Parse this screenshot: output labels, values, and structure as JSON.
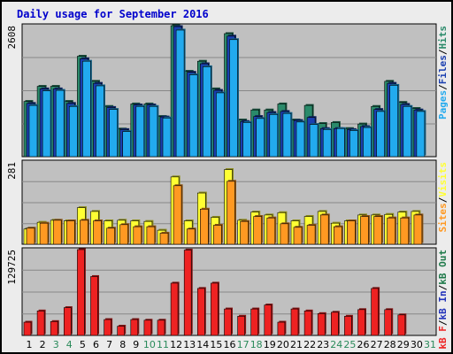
{
  "chart_data": {
    "type": "bar",
    "title": "Daily usage for September 2016",
    "days": [
      "1",
      "2",
      "3",
      "4",
      "5",
      "6",
      "7",
      "8",
      "9",
      "10",
      "11",
      "12",
      "13",
      "14",
      "15",
      "16",
      "17",
      "18",
      "19",
      "20",
      "21",
      "22",
      "23",
      "24",
      "25",
      "26",
      "27",
      "28",
      "29",
      "30",
      "31"
    ],
    "weekend_days": [
      3,
      4,
      10,
      11,
      17,
      18,
      24,
      25,
      31
    ],
    "colors": {
      "hits": "#2a8a6a",
      "files": "#1a3fb0",
      "pages": "#22aaee",
      "visits": "#ffff33",
      "sites": "#ff9922",
      "kb_in": "#2233bb",
      "kb_out": "#1e7a4a",
      "kb_f": "#ee2222",
      "weekday_label": "#000000",
      "weekend_label": "#2a8a5a",
      "title": "#0000cc"
    },
    "panels": [
      {
        "name": "requests",
        "max_label": "2608",
        "ymax": 2608,
        "legend": [
          {
            "text": "Pages",
            "color": "#22aaee"
          },
          {
            "text": "/",
            "color": "#000000"
          },
          {
            "text": "Files",
            "color": "#1a3fb0"
          },
          {
            "text": "/",
            "color": "#000000"
          },
          {
            "text": "Hits",
            "color": "#2a8a6a"
          }
        ],
        "series": [
          {
            "name": "Hits",
            "values": [
              1100,
              1400,
              1400,
              1100,
              2000,
              1500,
              1000,
              550,
              1050,
              1050,
              800,
              2608,
              1700,
              1900,
              1350,
              2450,
              730,
              930,
              930,
              1050,
              730,
              1020,
              660,
              680,
              560,
              650,
              1000,
              1500,
              1080,
              960,
              0
            ]
          },
          {
            "name": "Files",
            "values": [
              1060,
              1350,
              1350,
              1060,
              1950,
              1460,
              980,
              540,
              1030,
              1030,
              790,
              2590,
              1680,
              1850,
              1320,
              2400,
              700,
              800,
              880,
              900,
              720,
              780,
              560,
              560,
              540,
              600,
              940,
              1460,
              1040,
              930,
              0
            ]
          },
          {
            "name": "Pages",
            "values": [
              1020,
              1310,
              1320,
              1000,
              1900,
              1410,
              940,
              500,
              1000,
              1000,
              770,
              2520,
              1630,
              1790,
              1270,
              2330,
              680,
              760,
              840,
              860,
              690,
              640,
              540,
              560,
              520,
              580,
              900,
              1420,
              1000,
              900,
              0
            ]
          }
        ]
      },
      {
        "name": "visitors",
        "max_label": "281",
        "ymax": 281,
        "legend": [
          {
            "text": "Sites",
            "color": "#ff9922"
          },
          {
            "text": "/",
            "color": "#000000"
          },
          {
            "text": "Visits",
            "color": "#ffff33"
          }
        ],
        "series": [
          {
            "name": "Visits",
            "values": [
              52,
              75,
              82,
              80,
              125,
              112,
              80,
              82,
              80,
              78,
              48,
              230,
              80,
              175,
              92,
              255,
              82,
              110,
              100,
              108,
              80,
              95,
              112,
              72,
              80,
              100,
              100,
              102,
              110,
              112,
              0
            ]
          },
          {
            "name": "Sites",
            "values": [
              55,
              72,
              82,
              80,
              82,
              80,
              55,
              67,
              60,
              60,
              38,
              200,
              52,
              120,
              65,
              215,
              78,
              95,
              90,
              70,
              58,
              65,
              100,
              60,
              80,
              95,
              95,
              90,
              90,
              100,
              0
            ]
          }
        ]
      },
      {
        "name": "kbytes",
        "max_label": "129725",
        "ymax": 129725,
        "legend": [
          {
            "text": "kB F",
            "color": "#ee2222"
          },
          {
            "text": "/",
            "color": "#000000"
          },
          {
            "text": "kB In",
            "color": "#2233bb"
          },
          {
            "text": "/",
            "color": "#000000"
          },
          {
            "text": "kB Out",
            "color": "#1e7a4a"
          }
        ],
        "series": [
          {
            "name": "kB F",
            "values": [
              20000,
              37000,
              21000,
              42000,
              129725,
              89000,
              24000,
              14000,
              24000,
              23000,
              23000,
              79000,
              129000,
              71000,
              79000,
              40000,
              29000,
              40000,
              46000,
              20000,
              40000,
              37000,
              33000,
              35000,
              29000,
              39000,
              71000,
              39000,
              31000,
              0,
              0
            ]
          }
        ]
      }
    ]
  }
}
